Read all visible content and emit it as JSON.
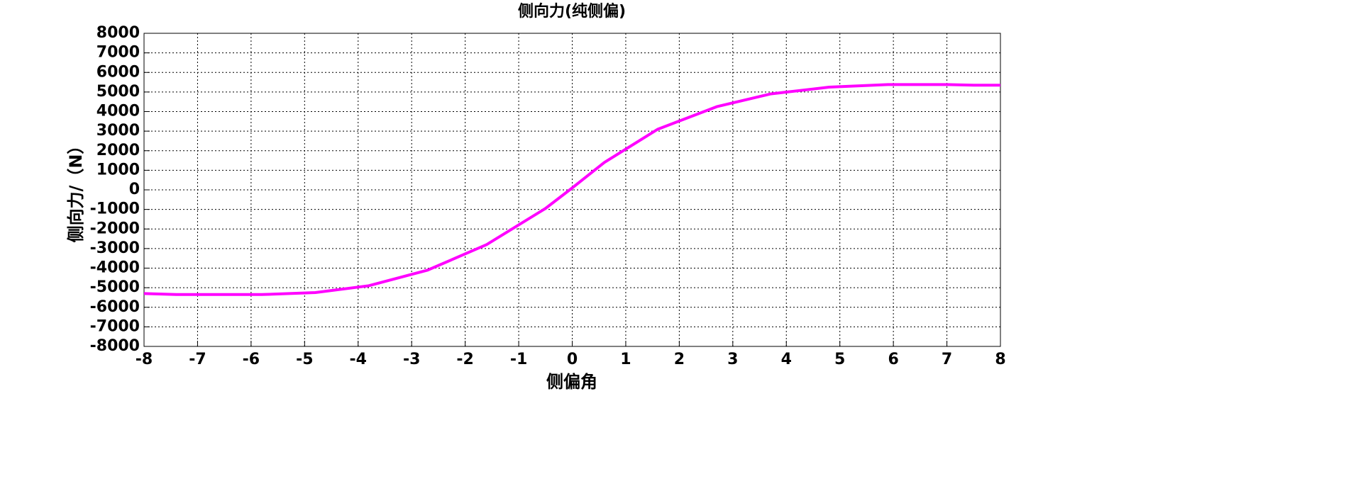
{
  "chart_data": {
    "type": "line",
    "title": "侧向力(纯侧偏)",
    "x_label": "侧偏角",
    "y_label": "侧向力/（N）",
    "x": [
      -8,
      -7.4,
      -6.5,
      -5.8,
      -4.8,
      -3.8,
      -2.7,
      -1.6,
      -0.5,
      0,
      0.6,
      1.6,
      2.7,
      3.7,
      4.8,
      5.9,
      7,
      7.5,
      8
    ],
    "series": [
      {
        "name": "侧向力",
        "color": "#ff00ff",
        "values": [
          -5300,
          -5350,
          -5350,
          -5350,
          -5250,
          -4900,
          -4100,
          -2800,
          -950,
          100,
          1400,
          3100,
          4250,
          4900,
          5250,
          5380,
          5380,
          5350,
          5350
        ]
      }
    ],
    "xlim": [
      -8,
      8
    ],
    "xticks": [
      -8,
      -7,
      -6,
      -5,
      -4,
      -3,
      -2,
      -1,
      0,
      1,
      2,
      3,
      4,
      5,
      6,
      7,
      8
    ],
    "ylim": [
      -8000,
      8000
    ],
    "yticks": [
      -8000,
      -7000,
      -6000,
      -5000,
      -4000,
      -3000,
      -2000,
      -1000,
      0,
      1000,
      2000,
      3000,
      4000,
      5000,
      6000,
      7000,
      8000
    ],
    "grid": true
  }
}
